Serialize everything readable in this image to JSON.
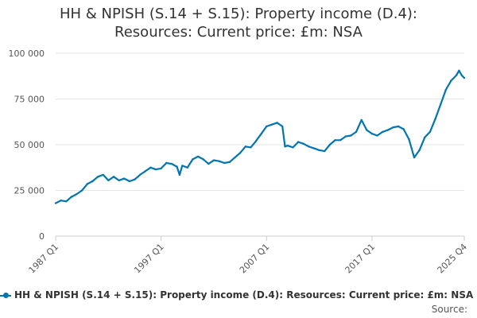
{
  "chart_data": {
    "type": "line",
    "title_lines": [
      "HH & NPISH (S.14 + S.15): Property income (D.4):",
      "Resources: Current price: £m: NSA"
    ],
    "xlabel": "",
    "ylabel": "",
    "ylim": [
      0,
      100000
    ],
    "y_ticks": [
      0,
      25000,
      50000,
      75000,
      100000
    ],
    "y_tick_labels": [
      "0",
      "25 000",
      "50 000",
      "75 000",
      "100 000"
    ],
    "x_tick_labels": [
      "1987 Q1",
      "1997 Q1",
      "2007 Q1",
      "2017 Q1",
      "2025 Q4"
    ],
    "x_tick_positions": [
      1987.0,
      1997.0,
      2007.0,
      2017.0,
      2025.75
    ],
    "x_range": [
      "1987 Q1",
      "2025 Q4"
    ],
    "grid": "horizontal",
    "legend_position": "bottom",
    "series": [
      {
        "name": "HH & NPISH (S.14 + S.15): Property income (D.4): Resources: Current price: £m: NSA",
        "color": "#0075b0",
        "points": [
          [
            "1987 Q1",
            18000
          ],
          [
            "1987 Q3",
            19500
          ],
          [
            "1988 Q1",
            19000
          ],
          [
            "1988 Q3",
            21500
          ],
          [
            "1989 Q1",
            23000
          ],
          [
            "1989 Q3",
            25000
          ],
          [
            "1990 Q1",
            28500
          ],
          [
            "1990 Q3",
            30000
          ],
          [
            "1991 Q1",
            32500
          ],
          [
            "1991 Q3",
            33500
          ],
          [
            "1992 Q1",
            30500
          ],
          [
            "1992 Q3",
            32500
          ],
          [
            "1993 Q1",
            30500
          ],
          [
            "1993 Q3",
            31500
          ],
          [
            "1994 Q1",
            30000
          ],
          [
            "1994 Q3",
            31000
          ],
          [
            "1995 Q1",
            33500
          ],
          [
            "1995 Q3",
            35500
          ],
          [
            "1996 Q1",
            37500
          ],
          [
            "1996 Q3",
            36500
          ],
          [
            "1997 Q1",
            37000
          ],
          [
            "1997 Q3",
            40000
          ],
          [
            "1998 Q1",
            39500
          ],
          [
            "1998 Q3",
            38000
          ],
          [
            "1998 Q4",
            33500
          ],
          [
            "1999 Q1",
            38500
          ],
          [
            "1999 Q3",
            37500
          ],
          [
            "2000 Q1",
            42000
          ],
          [
            "2000 Q3",
            43500
          ],
          [
            "2001 Q1",
            42000
          ],
          [
            "2001 Q3",
            39500
          ],
          [
            "2002 Q1",
            41500
          ],
          [
            "2002 Q3",
            41000
          ],
          [
            "2003 Q1",
            40000
          ],
          [
            "2003 Q3",
            40500
          ],
          [
            "2004 Q1",
            43000
          ],
          [
            "2004 Q3",
            45500
          ],
          [
            "2005 Q1",
            49000
          ],
          [
            "2005 Q3",
            48500
          ],
          [
            "2006 Q1",
            52000
          ],
          [
            "2006 Q3",
            56000
          ],
          [
            "2007 Q1",
            60000
          ],
          [
            "2007 Q3",
            61000
          ],
          [
            "2008 Q1",
            62000
          ],
          [
            "2008 Q3",
            60000
          ],
          [
            "2008 Q4",
            49000
          ],
          [
            "2009 Q1",
            49500
          ],
          [
            "2009 Q3",
            48500
          ],
          [
            "2010 Q1",
            51500
          ],
          [
            "2010 Q3",
            50500
          ],
          [
            "2011 Q1",
            49000
          ],
          [
            "2011 Q3",
            48000
          ],
          [
            "2012 Q1",
            47000
          ],
          [
            "2012 Q3",
            46500
          ],
          [
            "2013 Q1",
            50000
          ],
          [
            "2013 Q3",
            52500
          ],
          [
            "2014 Q1",
            52500
          ],
          [
            "2014 Q3",
            54500
          ],
          [
            "2015 Q1",
            55000
          ],
          [
            "2015 Q3",
            57000
          ],
          [
            "2016 Q1",
            63500
          ],
          [
            "2016 Q3",
            58000
          ],
          [
            "2017 Q1",
            56000
          ],
          [
            "2017 Q3",
            55000
          ],
          [
            "2018 Q1",
            57000
          ],
          [
            "2018 Q3",
            58000
          ],
          [
            "2019 Q1",
            59500
          ],
          [
            "2019 Q3",
            60000
          ],
          [
            "2020 Q1",
            58500
          ],
          [
            "2020 Q3",
            53000
          ],
          [
            "2021 Q1",
            43000
          ],
          [
            "2021 Q3",
            47000
          ],
          [
            "2022 Q1",
            54000
          ],
          [
            "2022 Q3",
            57000
          ],
          [
            "2023 Q1",
            64000
          ],
          [
            "2023 Q3",
            72000
          ],
          [
            "2024 Q1",
            80000
          ],
          [
            "2024 Q3",
            85000
          ],
          [
            "2025 Q1",
            88000
          ],
          [
            "2025 Q2",
            90500
          ],
          [
            "2025 Q3",
            88000
          ],
          [
            "2025 Q4",
            86500
          ]
        ]
      }
    ],
    "source_label": "Source:"
  }
}
